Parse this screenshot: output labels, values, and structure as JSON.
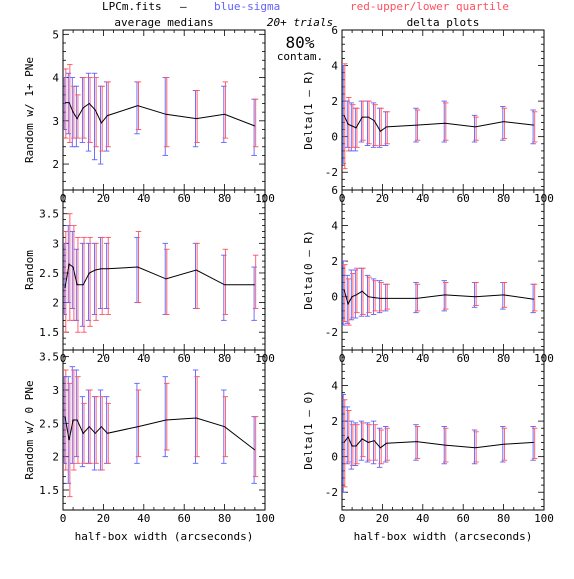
{
  "header": {
    "filename": "LPCm.fits",
    "dash": "–",
    "blue_label": "blue-sigma",
    "red_label": "red-upper/lower quartile",
    "center_top": "20+ trials",
    "center_big": "80%",
    "center_bottom": "contam."
  },
  "colors": {
    "line": "#000000",
    "blue": "#6060ff",
    "red": "#ff5060",
    "frame": "#000000"
  },
  "chart_data": [
    {
      "type": "line",
      "panel": "top-left",
      "title": "average medians",
      "ylabel": "Random w/ 1+ PNe",
      "xlabel": "",
      "xlim": [
        0,
        100
      ],
      "ylim": [
        1.4,
        5.1
      ],
      "xticks": [
        0,
        20,
        40,
        60,
        80,
        100
      ],
      "yticks": [
        2,
        3,
        4,
        5
      ],
      "x": [
        1,
        3,
        5,
        7,
        10,
        13,
        16,
        19,
        22,
        37,
        51,
        66,
        80,
        95
      ],
      "y": [
        3.42,
        3.42,
        3.2,
        3.05,
        3.3,
        3.4,
        3.25,
        2.95,
        3.12,
        3.35,
        3.15,
        3.05,
        3.15,
        2.88
      ],
      "blue_err": [
        [
          2.8,
          4.0
        ],
        [
          2.7,
          4.1
        ],
        [
          2.4,
          4.0
        ],
        [
          2.4,
          3.8
        ],
        [
          2.5,
          4.0
        ],
        [
          2.3,
          4.1
        ],
        [
          2.1,
          4.1
        ],
        [
          2.0,
          3.8
        ],
        [
          2.3,
          3.9
        ],
        [
          2.7,
          3.9
        ],
        [
          2.2,
          4.0
        ],
        [
          2.4,
          3.7
        ],
        [
          2.5,
          3.8
        ],
        [
          2.2,
          3.5
        ]
      ],
      "red_err": [
        [
          2.6,
          4.2
        ],
        [
          2.5,
          4.3
        ],
        [
          2.6,
          3.8
        ],
        [
          2.6,
          3.6
        ],
        [
          2.6,
          4.0
        ],
        [
          2.5,
          4.0
        ],
        [
          2.4,
          4.0
        ],
        [
          2.3,
          3.8
        ],
        [
          2.4,
          3.9
        ],
        [
          2.8,
          3.9
        ],
        [
          2.4,
          4.0
        ],
        [
          2.5,
          3.7
        ],
        [
          2.6,
          3.9
        ],
        [
          2.4,
          3.5
        ]
      ]
    },
    {
      "type": "line",
      "panel": "top-right",
      "title": "delta plots",
      "ylabel": "Delta(1 – R)",
      "xlabel": "",
      "xlim": [
        0,
        100
      ],
      "ylim": [
        -3,
        6
      ],
      "xticks": [
        0,
        20,
        40,
        60,
        80,
        100
      ],
      "yticks": [
        -2,
        0,
        2,
        4,
        6
      ],
      "x": [
        1,
        3,
        5,
        7,
        10,
        13,
        16,
        19,
        22,
        37,
        51,
        66,
        80,
        95
      ],
      "y": [
        1.2,
        0.7,
        0.6,
        0.5,
        1.1,
        1.1,
        0.9,
        0.3,
        0.55,
        0.65,
        0.75,
        0.55,
        0.85,
        0.65
      ],
      "blue_err": [
        [
          -1.5,
          4.0
        ],
        [
          -0.6,
          2.0
        ],
        [
          -0.8,
          1.9
        ],
        [
          -0.8,
          1.6
        ],
        [
          -0.3,
          2.0
        ],
        [
          -0.5,
          2.0
        ],
        [
          -0.6,
          1.9
        ],
        [
          -0.6,
          1.6
        ],
        [
          -0.5,
          1.4
        ],
        [
          -0.3,
          1.6
        ],
        [
          -0.3,
          2.0
        ],
        [
          -0.3,
          1.2
        ],
        [
          -0.2,
          1.7
        ],
        [
          -0.4,
          1.5
        ]
      ],
      "red_err": [
        [
          -1.8,
          4.1
        ],
        [
          -0.8,
          2.2
        ],
        [
          -0.6,
          1.8
        ],
        [
          -0.6,
          1.6
        ],
        [
          -0.2,
          2.0
        ],
        [
          -0.4,
          2.0
        ],
        [
          -0.5,
          1.8
        ],
        [
          -0.5,
          1.6
        ],
        [
          -0.4,
          1.4
        ],
        [
          -0.2,
          1.5
        ],
        [
          -0.2,
          1.9
        ],
        [
          -0.2,
          1.1
        ],
        [
          -0.1,
          1.6
        ],
        [
          -0.3,
          1.4
        ]
      ]
    },
    {
      "type": "line",
      "panel": "middle-left",
      "title": "",
      "ylabel": "Random",
      "xlabel": "",
      "xlim": [
        0,
        100
      ],
      "ylim": [
        1.2,
        3.9
      ],
      "xticks": [
        0,
        20,
        40,
        60,
        80,
        100
      ],
      "yticks": [
        1.5,
        2,
        2.5,
        3,
        3.5
      ],
      "x": [
        1,
        3,
        5,
        7,
        10,
        13,
        16,
        19,
        22,
        37,
        51,
        66,
        80,
        95
      ],
      "y": [
        2.25,
        2.65,
        2.6,
        2.3,
        2.3,
        2.5,
        2.55,
        2.57,
        2.57,
        2.6,
        2.4,
        2.55,
        2.3,
        2.3
      ],
      "blue_err": [
        [
          1.8,
          3.0
        ],
        [
          2.0,
          3.3
        ],
        [
          1.9,
          3.2
        ],
        [
          1.7,
          2.9
        ],
        [
          1.6,
          3.0
        ],
        [
          1.7,
          3.0
        ],
        [
          1.8,
          3.0
        ],
        [
          1.9,
          3.1
        ],
        [
          1.9,
          3.0
        ],
        [
          2.0,
          3.1
        ],
        [
          1.8,
          3.0
        ],
        [
          1.9,
          3.0
        ],
        [
          1.7,
          2.8
        ],
        [
          1.7,
          2.6
        ]
      ],
      "red_err": [
        [
          1.5,
          3.2
        ],
        [
          1.7,
          3.5
        ],
        [
          1.7,
          3.3
        ],
        [
          1.5,
          3.1
        ],
        [
          1.5,
          3.1
        ],
        [
          1.6,
          3.1
        ],
        [
          1.7,
          3.0
        ],
        [
          1.8,
          3.1
        ],
        [
          1.8,
          3.1
        ],
        [
          2.0,
          3.2
        ],
        [
          1.8,
          2.9
        ],
        [
          1.9,
          3.0
        ],
        [
          1.8,
          2.9
        ],
        [
          1.9,
          2.8
        ]
      ]
    },
    {
      "type": "line",
      "panel": "middle-right",
      "title": "",
      "ylabel": "Delta(0 – R)",
      "xlabel": "",
      "xlim": [
        0,
        100
      ],
      "ylim": [
        -3,
        6
      ],
      "xticks": [
        0,
        20,
        40,
        60,
        80,
        100
      ],
      "yticks": [
        -2,
        0,
        2,
        4,
        6
      ],
      "x": [
        1,
        3,
        5,
        7,
        10,
        13,
        16,
        19,
        22,
        37,
        51,
        66,
        80,
        95
      ],
      "y": [
        0.4,
        -0.4,
        0.0,
        0.1,
        0.3,
        0.0,
        -0.05,
        -0.1,
        -0.1,
        -0.1,
        0.1,
        0.0,
        0.1,
        -0.15
      ],
      "blue_err": [
        [
          -1.6,
          2.0
        ],
        [
          -1.5,
          1.2
        ],
        [
          -1.3,
          1.5
        ],
        [
          -1.2,
          1.5
        ],
        [
          -1.1,
          1.6
        ],
        [
          -1.1,
          1.2
        ],
        [
          -1.0,
          1.0
        ],
        [
          -0.9,
          0.9
        ],
        [
          -0.8,
          0.7
        ],
        [
          -0.9,
          0.8
        ],
        [
          -0.8,
          0.9
        ],
        [
          -0.6,
          0.8
        ],
        [
          -0.7,
          0.8
        ],
        [
          -0.9,
          0.7
        ]
      ],
      "red_err": [
        [
          -1.4,
          1.8
        ],
        [
          -1.6,
          1.0
        ],
        [
          -1.2,
          1.3
        ],
        [
          -0.9,
          1.6
        ],
        [
          -1.0,
          1.6
        ],
        [
          -0.9,
          1.1
        ],
        [
          -0.8,
          0.9
        ],
        [
          -0.8,
          0.8
        ],
        [
          -0.7,
          0.7
        ],
        [
          -0.8,
          0.7
        ],
        [
          -0.7,
          0.8
        ],
        [
          -0.5,
          0.8
        ],
        [
          -0.6,
          0.8
        ],
        [
          -0.8,
          0.7
        ]
      ]
    },
    {
      "type": "line",
      "panel": "bottom-left",
      "title": "",
      "ylabel": "Random w/ 0 PNe",
      "xlabel": "half-box width (arcseconds)",
      "xlim": [
        0,
        100
      ],
      "ylim": [
        1.2,
        3.6
      ],
      "xticks": [
        0,
        20,
        40,
        60,
        80,
        100
      ],
      "yticks": [
        1.5,
        2,
        2.5,
        3,
        3.5
      ],
      "x": [
        1,
        3,
        5,
        7,
        10,
        13,
        16,
        19,
        22,
        37,
        51,
        66,
        80,
        95
      ],
      "y": [
        2.6,
        2.25,
        2.55,
        2.55,
        2.35,
        2.45,
        2.35,
        2.45,
        2.35,
        2.45,
        2.55,
        2.58,
        2.45,
        2.1
      ],
      "blue_err": [
        [
          1.9,
          3.2
        ],
        [
          1.6,
          3.2
        ],
        [
          1.9,
          3.35
        ],
        [
          2.0,
          3.3
        ],
        [
          1.85,
          2.9
        ],
        [
          1.9,
          3.0
        ],
        [
          1.8,
          2.9
        ],
        [
          1.8,
          3.0
        ],
        [
          1.9,
          2.9
        ],
        [
          1.9,
          3.1
        ],
        [
          2.0,
          3.2
        ],
        [
          1.9,
          3.3
        ],
        [
          1.9,
          3.0
        ],
        [
          1.6,
          2.6
        ]
      ],
      "red_err": [
        [
          1.8,
          3.3
        ],
        [
          1.4,
          3.1
        ],
        [
          1.8,
          3.3
        ],
        [
          1.9,
          3.2
        ],
        [
          1.9,
          2.8
        ],
        [
          1.9,
          3.0
        ],
        [
          1.9,
          2.9
        ],
        [
          1.8,
          2.9
        ],
        [
          1.9,
          2.8
        ],
        [
          2.0,
          3.0
        ],
        [
          2.1,
          3.1
        ],
        [
          2.0,
          3.2
        ],
        [
          2.0,
          2.9
        ],
        [
          1.7,
          2.6
        ]
      ]
    },
    {
      "type": "line",
      "panel": "bottom-right",
      "title": "",
      "ylabel": "Delta(1 – 0)",
      "xlabel": "half-box width (arcseconds)",
      "xlim": [
        0,
        100
      ],
      "ylim": [
        -3,
        6
      ],
      "xticks": [
        0,
        20,
        40,
        60,
        80,
        100
      ],
      "yticks": [
        -2,
        0,
        2,
        4
      ],
      "x": [
        1,
        3,
        5,
        7,
        10,
        13,
        16,
        19,
        22,
        37,
        51,
        66,
        80,
        95
      ],
      "y": [
        0.8,
        1.1,
        0.6,
        0.6,
        1.0,
        0.8,
        0.9,
        0.5,
        0.75,
        0.85,
        0.65,
        0.5,
        0.7,
        0.8
      ],
      "blue_err": [
        [
          -2.0,
          3.5
        ],
        [
          -0.4,
          2.8
        ],
        [
          -0.7,
          2.0
        ],
        [
          -0.5,
          1.9
        ],
        [
          -0.2,
          2.0
        ],
        [
          -0.3,
          1.9
        ],
        [
          -0.4,
          2.0
        ],
        [
          -0.6,
          1.6
        ],
        [
          -0.3,
          1.7
        ],
        [
          -0.2,
          1.8
        ],
        [
          -0.4,
          1.7
        ],
        [
          -0.4,
          1.5
        ],
        [
          -0.3,
          1.7
        ],
        [
          -0.2,
          1.7
        ]
      ],
      "red_err": [
        [
          -1.7,
          3.2
        ],
        [
          -0.3,
          2.6
        ],
        [
          -0.5,
          1.8
        ],
        [
          -0.4,
          1.8
        ],
        [
          0.0,
          1.9
        ],
        [
          -0.2,
          1.8
        ],
        [
          -0.2,
          1.8
        ],
        [
          -0.4,
          1.5
        ],
        [
          -0.2,
          1.6
        ],
        [
          -0.1,
          1.7
        ],
        [
          -0.3,
          1.6
        ],
        [
          -0.3,
          1.4
        ],
        [
          -0.2,
          1.6
        ],
        [
          -0.1,
          1.6
        ]
      ]
    }
  ]
}
